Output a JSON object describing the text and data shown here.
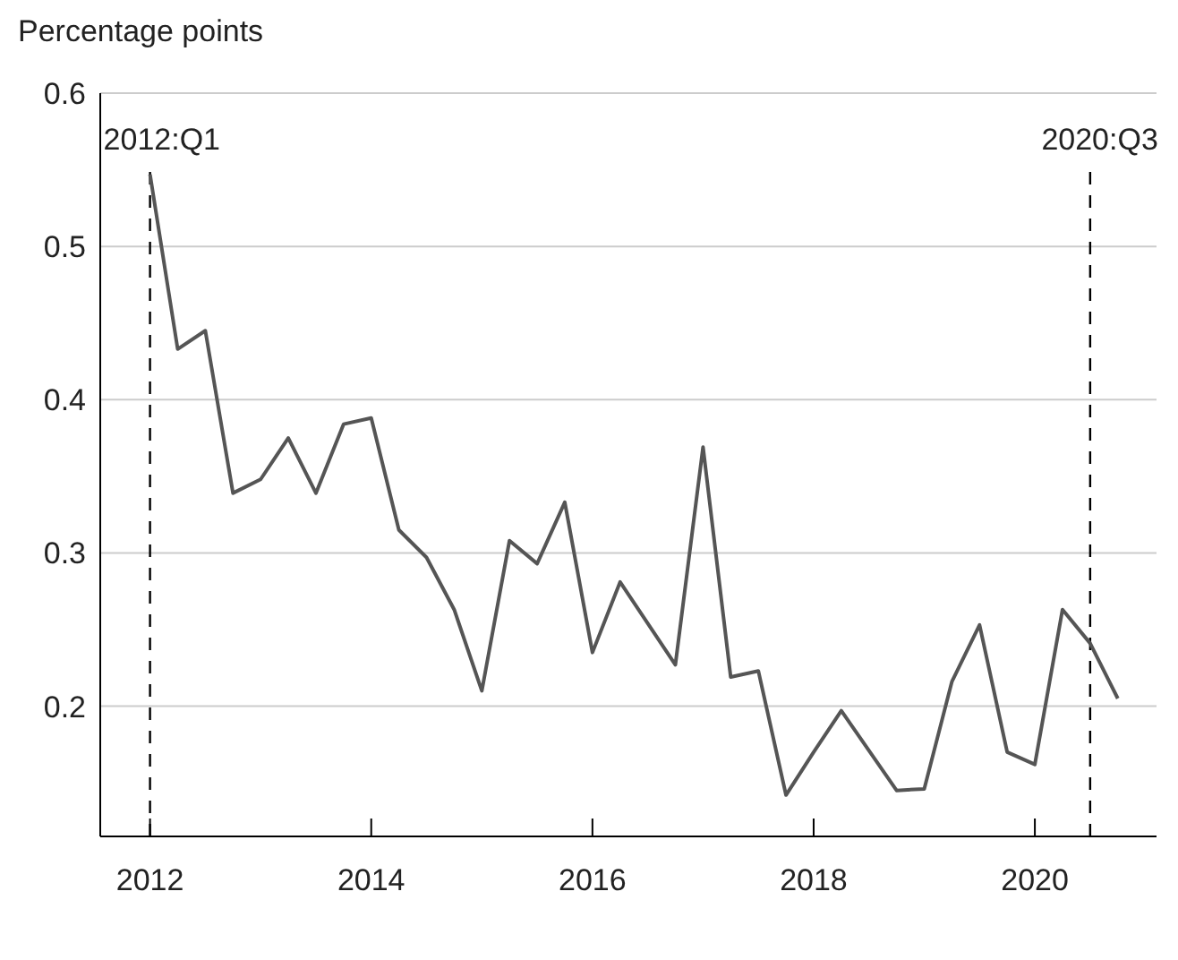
{
  "chart_data": {
    "type": "line",
    "ylabel": "Percentage points",
    "x": [
      2012,
      2012.25,
      2012.5,
      2012.75,
      2013,
      2013.25,
      2013.5,
      2013.75,
      2014,
      2014.25,
      2014.5,
      2014.75,
      2015,
      2015.25,
      2015.5,
      2015.75,
      2016,
      2016.25,
      2016.5,
      2016.75,
      2017,
      2017.25,
      2017.5,
      2017.75,
      2018,
      2018.25,
      2018.5,
      2018.75,
      2019,
      2019.25,
      2019.5,
      2019.75,
      2020,
      2020.25,
      2020.5,
      2020.75
    ],
    "series": [
      {
        "color": "#555555",
        "values": [
          0.547,
          0.433,
          0.445,
          0.339,
          0.348,
          0.375,
          0.339,
          0.384,
          0.388,
          0.315,
          0.297,
          0.263,
          0.21,
          0.308,
          0.293,
          0.333,
          0.235,
          0.281,
          0.254,
          0.227,
          0.369,
          0.219,
          0.223,
          0.142,
          0.17,
          0.197,
          0.171,
          0.145,
          0.146,
          0.216,
          0.253,
          0.17,
          0.162,
          0.263,
          0.241,
          0.205
        ]
      }
    ],
    "xlim": [
      2011.55,
      2021.1
    ],
    "xticks": [
      2012,
      2014,
      2016,
      2018,
      2020
    ],
    "ylim": [
      0.115,
      0.6
    ],
    "yticks": [
      0.2,
      0.3,
      0.4,
      0.5,
      0.6
    ],
    "grid": "y",
    "marker": "none",
    "line_style": "solid",
    "ref_lines": [
      {
        "axis": "x",
        "value": 2012,
        "label": "2012:Q1",
        "color": "#000000",
        "line_style": "dashed"
      },
      {
        "axis": "x",
        "value": 2020.5,
        "label": "2020:Q3",
        "color": "#000000",
        "line_style": "dashed"
      }
    ]
  }
}
